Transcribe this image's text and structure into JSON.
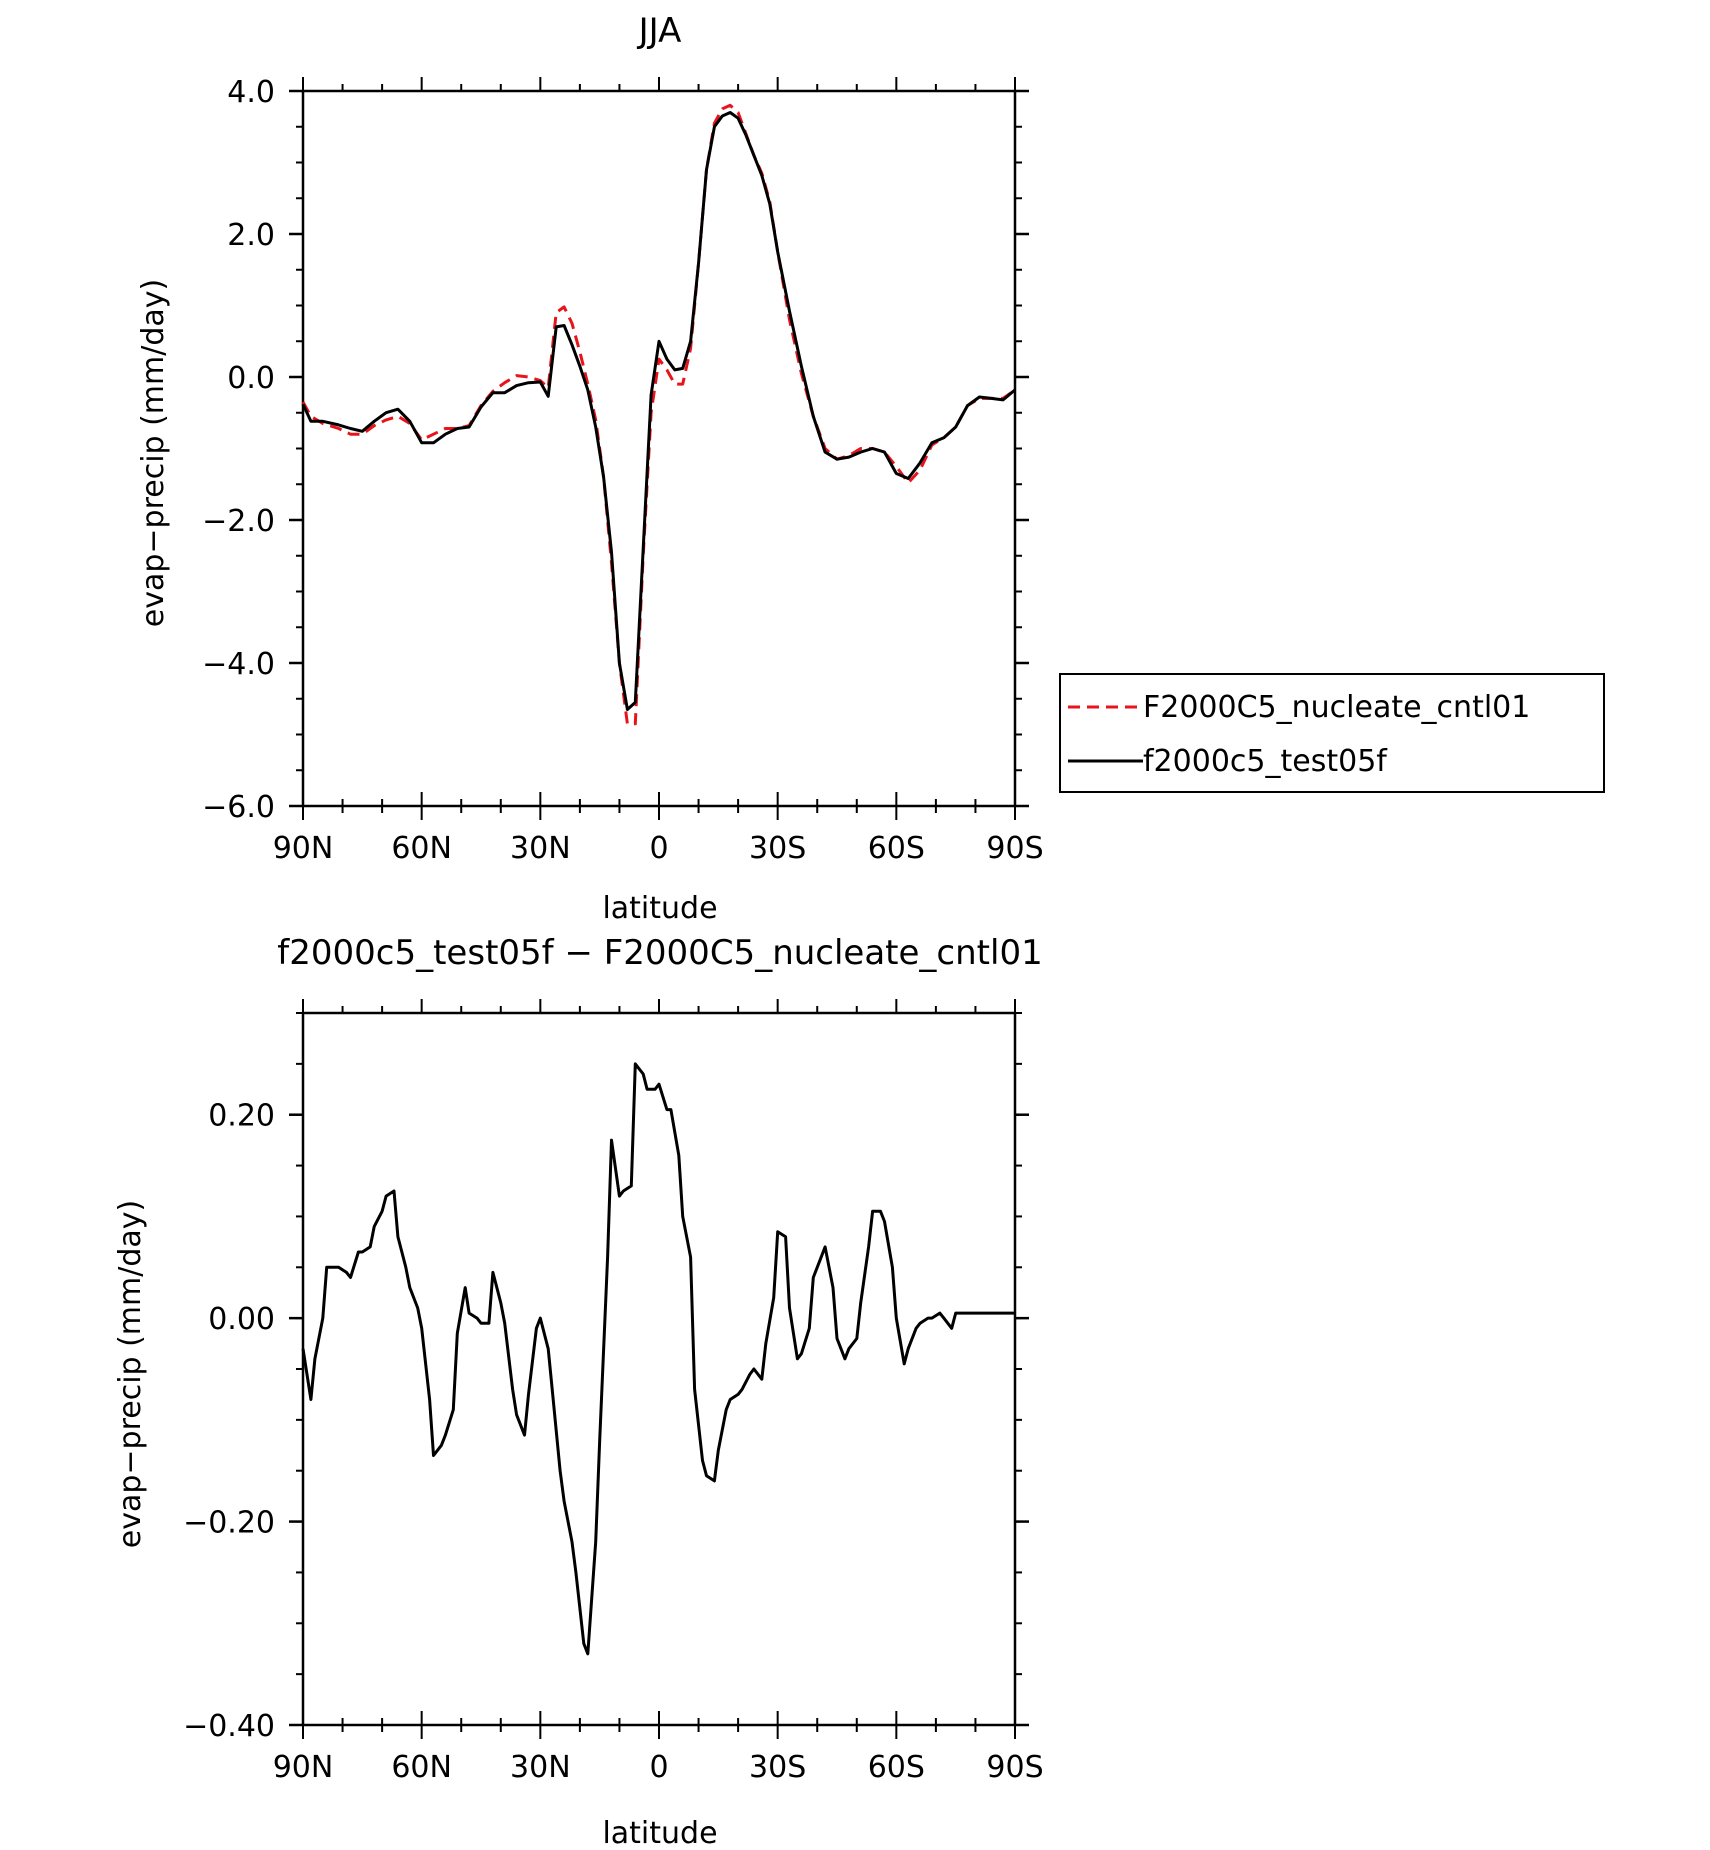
{
  "chart_data": [
    {
      "type": "line",
      "title": "JJA",
      "xlabel": "latitude",
      "ylabel": "evap−precip (mm/day)",
      "xlim": [
        -90,
        90
      ],
      "ylim": [
        -6,
        4
      ],
      "xticks": [
        {
          "value": -90,
          "label": "90N"
        },
        {
          "value": -60,
          "label": "60N"
        },
        {
          "value": -30,
          "label": "30N"
        },
        {
          "value": 0,
          "label": "0"
        },
        {
          "value": 30,
          "label": "30S"
        },
        {
          "value": 60,
          "label": "60S"
        },
        {
          "value": 90,
          "label": "90S"
        }
      ],
      "yticks": [
        {
          "value": 4,
          "label": "4.0"
        },
        {
          "value": 2,
          "label": "2.0"
        },
        {
          "value": 0,
          "label": "0.0"
        },
        {
          "value": -2,
          "label": "−2.0"
        },
        {
          "value": -4,
          "label": "−4.0"
        },
        {
          "value": -6,
          "label": "−6.0"
        }
      ],
      "legend": {
        "position": "right"
      },
      "series": [
        {
          "name": "F2000C5_nucleate_cntl01",
          "color": "#e8141b",
          "style": "dashed",
          "x": [
            -90,
            -88,
            -85,
            -81,
            -78,
            -75,
            -72,
            -69,
            -66,
            -63,
            -60,
            -57,
            -54,
            -51,
            -48,
            -45,
            -42,
            -39,
            -36,
            -33,
            -30,
            -28,
            -26,
            -24,
            -22,
            -20,
            -18,
            -16,
            -14,
            -12,
            -10,
            -8,
            -6,
            -4,
            -2,
            0,
            2,
            4,
            6,
            8,
            10,
            12,
            14,
            16,
            18,
            20,
            22,
            24,
            26,
            28,
            30,
            33,
            36,
            39,
            42,
            45,
            48,
            51,
            54,
            57,
            60,
            63,
            66,
            69,
            72,
            75,
            78,
            81,
            84,
            87,
            90
          ],
          "y": [
            -0.35,
            -0.55,
            -0.65,
            -0.72,
            -0.8,
            -0.8,
            -0.68,
            -0.6,
            -0.55,
            -0.65,
            -0.88,
            -0.8,
            -0.72,
            -0.72,
            -0.68,
            -0.4,
            -0.2,
            -0.08,
            0.02,
            0.0,
            -0.05,
            -0.15,
            0.9,
            0.98,
            0.75,
            0.35,
            -0.1,
            -0.6,
            -1.4,
            -2.6,
            -4.0,
            -4.85,
            -4.85,
            -2.5,
            -0.5,
            0.25,
            0.1,
            -0.1,
            -0.1,
            0.4,
            1.6,
            2.9,
            3.55,
            3.75,
            3.8,
            3.7,
            3.4,
            3.1,
            2.85,
            2.45,
            1.75,
            0.8,
            0.05,
            -0.55,
            -1.0,
            -1.15,
            -1.1,
            -1.0,
            -1.0,
            -1.05,
            -1.25,
            -1.48,
            -1.3,
            -0.95,
            -0.85,
            -0.7,
            -0.4,
            -0.3,
            -0.3,
            -0.3,
            -0.18
          ]
        },
        {
          "name": "f2000c5_test05f",
          "color": "#000000",
          "style": "solid",
          "x": [
            -90,
            -88,
            -85,
            -81,
            -78,
            -75,
            -72,
            -69,
            -66,
            -63,
            -60,
            -57,
            -54,
            -51,
            -48,
            -45,
            -42,
            -39,
            -36,
            -33,
            -30,
            -28,
            -26,
            -24,
            -22,
            -20,
            -18,
            -16,
            -14,
            -12,
            -10,
            -8,
            -6,
            -4,
            -2,
            0,
            2,
            4,
            6,
            8,
            10,
            12,
            14,
            16,
            18,
            20,
            22,
            24,
            26,
            28,
            30,
            33,
            36,
            39,
            42,
            45,
            48,
            51,
            54,
            57,
            60,
            63,
            66,
            69,
            72,
            75,
            78,
            81,
            84,
            87,
            90
          ],
          "y": [
            -0.38,
            -0.62,
            -0.62,
            -0.67,
            -0.72,
            -0.76,
            -0.62,
            -0.5,
            -0.45,
            -0.62,
            -0.92,
            -0.92,
            -0.8,
            -0.72,
            -0.7,
            -0.42,
            -0.22,
            -0.22,
            -0.12,
            -0.08,
            -0.07,
            -0.27,
            0.7,
            0.72,
            0.45,
            0.15,
            -0.18,
            -0.7,
            -1.4,
            -2.45,
            -4.0,
            -4.65,
            -4.55,
            -2.4,
            -0.25,
            0.5,
            0.25,
            0.1,
            0.12,
            0.5,
            1.6,
            2.9,
            3.5,
            3.65,
            3.7,
            3.62,
            3.38,
            3.1,
            2.82,
            2.42,
            1.75,
            0.92,
            0.15,
            -0.55,
            -1.05,
            -1.15,
            -1.12,
            -1.05,
            -1.0,
            -1.05,
            -1.35,
            -1.42,
            -1.2,
            -0.92,
            -0.85,
            -0.7,
            -0.4,
            -0.28,
            -0.3,
            -0.32,
            -0.18
          ]
        }
      ]
    },
    {
      "type": "line",
      "title": "f2000c5_test05f − F2000C5_nucleate_cntl01",
      "xlabel": "latitude",
      "ylabel": "evap−precip (mm/day)",
      "xlim": [
        -90,
        90
      ],
      "ylim": [
        -0.4,
        0.3
      ],
      "xticks": [
        {
          "value": -90,
          "label": "90N"
        },
        {
          "value": -60,
          "label": "60N"
        },
        {
          "value": -30,
          "label": "30N"
        },
        {
          "value": 0,
          "label": "0"
        },
        {
          "value": 30,
          "label": "30S"
        },
        {
          "value": 60,
          "label": "60S"
        },
        {
          "value": 90,
          "label": "90S"
        }
      ],
      "yticks": [
        {
          "value": 0.2,
          "label": "0.20"
        },
        {
          "value": 0.0,
          "label": "0.00"
        },
        {
          "value": -0.2,
          "label": "−0.20"
        },
        {
          "value": -0.4,
          "label": "−0.40"
        }
      ],
      "series": [
        {
          "color": "#000000",
          "style": "solid",
          "x": [
            -90,
            -88,
            -87,
            -85,
            -84,
            -82,
            -81,
            -79,
            -78,
            -76,
            -75,
            -73,
            -72,
            -70,
            -69,
            -67,
            -66,
            -64,
            -63,
            -61,
            -60,
            -58,
            -57,
            -55,
            -54,
            -52,
            -51,
            -49,
            -48,
            -46,
            -45,
            -43,
            -42,
            -40,
            -39,
            -37,
            -36,
            -34,
            -33,
            -31,
            -30,
            -28,
            -27,
            -25,
            -24,
            -22,
            -21,
            -19,
            -18,
            -16,
            -15,
            -13,
            -12,
            -10,
            -9,
            -7,
            -6,
            -4,
            -3,
            -1,
            0,
            2,
            3,
            5,
            6,
            8,
            9,
            11,
            12,
            14,
            15,
            17,
            18,
            20,
            21,
            23,
            24,
            26,
            27,
            29,
            30,
            32,
            33,
            35,
            36,
            38,
            39,
            41,
            42,
            44,
            45,
            47,
            48,
            50,
            51,
            53,
            54,
            56,
            57,
            59,
            60,
            62,
            63,
            65,
            66,
            68,
            69,
            71,
            72,
            74,
            75,
            77,
            78,
            80,
            81,
            83,
            84,
            86,
            87,
            89,
            90
          ],
          "y": [
            -0.03,
            -0.08,
            -0.04,
            0.0,
            0.05,
            0.05,
            0.05,
            0.045,
            0.04,
            0.065,
            0.065,
            0.07,
            0.09,
            0.105,
            0.12,
            0.125,
            0.08,
            0.05,
            0.03,
            0.01,
            -0.01,
            -0.08,
            -0.135,
            -0.125,
            -0.115,
            -0.09,
            -0.015,
            0.03,
            0.005,
            0.0,
            -0.005,
            -0.005,
            0.045,
            0.015,
            -0.005,
            -0.07,
            -0.095,
            -0.115,
            -0.075,
            -0.01,
            0.0,
            -0.03,
            -0.07,
            -0.15,
            -0.18,
            -0.22,
            -0.25,
            -0.32,
            -0.33,
            -0.22,
            -0.12,
            0.06,
            0.175,
            0.12,
            0.125,
            0.13,
            0.25,
            0.24,
            0.225,
            0.225,
            0.23,
            0.205,
            0.205,
            0.16,
            0.1,
            0.06,
            -0.07,
            -0.14,
            -0.155,
            -0.16,
            -0.13,
            -0.09,
            -0.08,
            -0.075,
            -0.07,
            -0.055,
            -0.05,
            -0.06,
            -0.025,
            0.02,
            0.085,
            0.08,
            0.01,
            -0.04,
            -0.035,
            -0.01,
            0.04,
            0.06,
            0.07,
            0.03,
            -0.02,
            -0.04,
            -0.03,
            -0.02,
            0.015,
            0.07,
            0.105,
            0.105,
            0.095,
            0.05,
            0.0,
            -0.045,
            -0.03,
            -0.01,
            -0.005,
            0.0,
            0.0,
            0.005,
            0.0,
            -0.01,
            0.005,
            0.005,
            0.005,
            0.005,
            0.005,
            0.005,
            0.005,
            0.005,
            0.005,
            0.005,
            0.005
          ]
        }
      ]
    }
  ]
}
